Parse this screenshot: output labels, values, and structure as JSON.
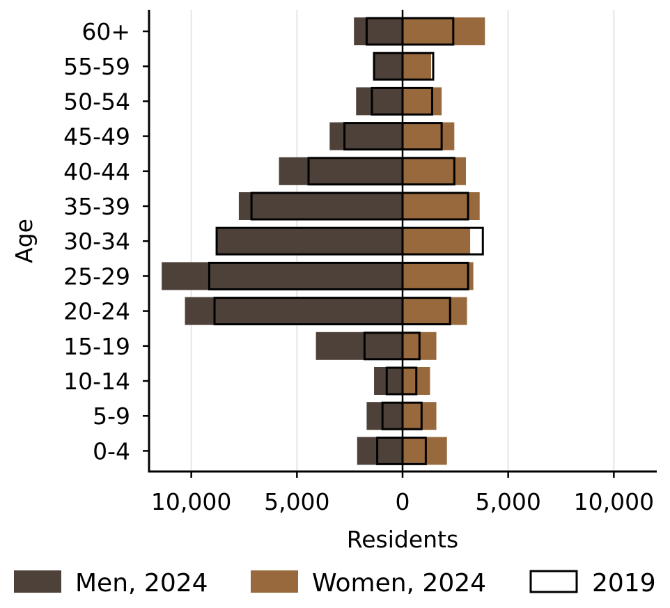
{
  "chart_data": {
    "type": "bar",
    "orientation": "horizontal",
    "subtype": "population-pyramid",
    "title": "",
    "xlabel": "Residents",
    "ylabel": "Age",
    "xlim": [
      -12000,
      12000
    ],
    "x_ticks": [
      -10000,
      -5000,
      0,
      5000,
      10000
    ],
    "x_tick_labels": [
      "10,000",
      "5,000",
      "0",
      "5,000",
      "10,000"
    ],
    "categories": [
      "0-4",
      "5-9",
      "10-14",
      "15-19",
      "20-24",
      "25-29",
      "30-34",
      "35-39",
      "40-44",
      "45-49",
      "50-54",
      "55-59",
      "60+"
    ],
    "grid": "vertical gridlines",
    "legend_position": "bottom",
    "series": [
      {
        "name": "Men, 2024",
        "side": "left",
        "style": "filled",
        "color": "#4d4139",
        "values": [
          2150,
          1700,
          1350,
          4100,
          10300,
          11400,
          8800,
          7750,
          5850,
          3450,
          2200,
          1350,
          2300
        ]
      },
      {
        "name": "Women, 2024",
        "side": "right",
        "style": "filled",
        "color": "#98693c",
        "values": [
          2100,
          1600,
          1300,
          1600,
          3050,
          3350,
          3200,
          3650,
          3000,
          2450,
          1850,
          1350,
          3900
        ]
      },
      {
        "name": "2019",
        "style": "outline",
        "color": "#000000",
        "men_values": [
          1200,
          950,
          750,
          1800,
          8900,
          9150,
          8800,
          7150,
          4450,
          2750,
          1450,
          1350,
          1700
        ],
        "women_values": [
          1100,
          900,
          650,
          800,
          2250,
          3100,
          3800,
          3100,
          2450,
          1850,
          1400,
          1450,
          2400
        ]
      }
    ]
  }
}
